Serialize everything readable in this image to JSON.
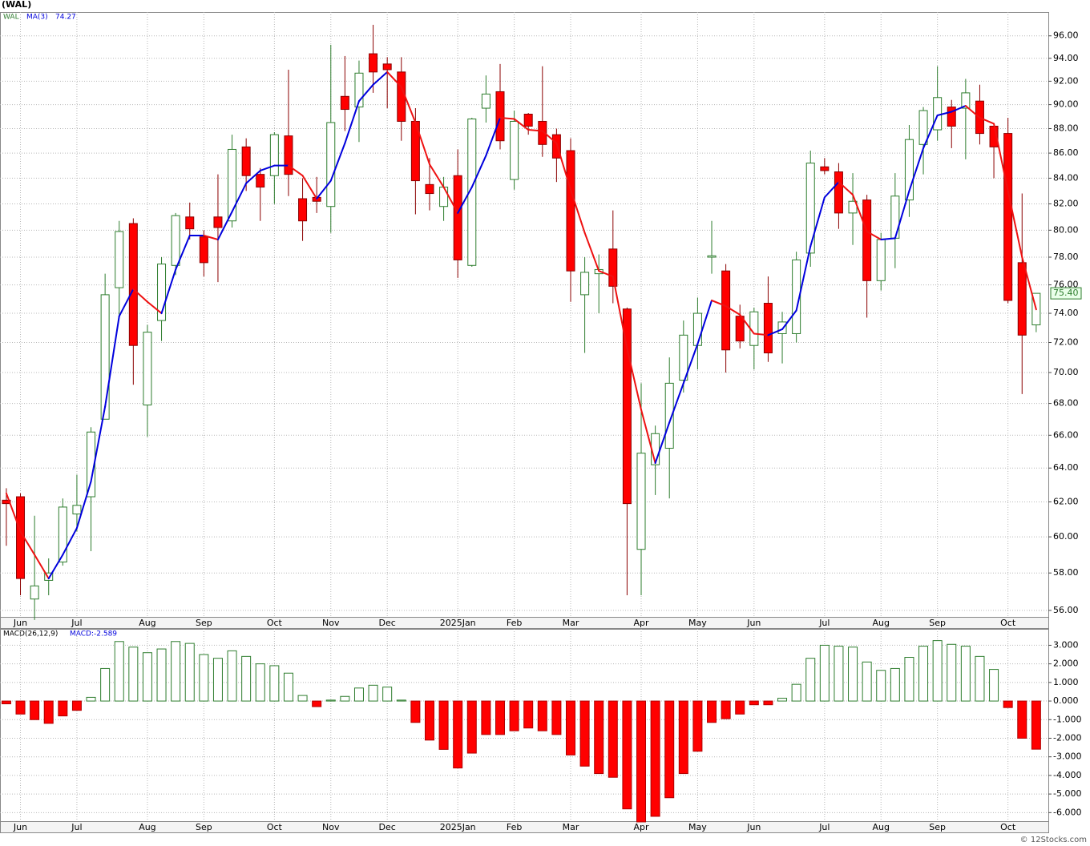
{
  "chart_data": [
    {
      "type": "candlestick",
      "title": "(WAL)",
      "symbol": "WAL",
      "log_scale": true,
      "grid": true,
      "ohlc": {
        "open": [
          62.1,
          62.3,
          56.6,
          57.6,
          58.6,
          61.3,
          62.3,
          67,
          75.8,
          80.5,
          67.9,
          73.5,
          77.4,
          81.0,
          79.5,
          81.0,
          80.7,
          86.5,
          84.3,
          84.2,
          87.4,
          82.4,
          82.5,
          81.8,
          90.7,
          89.8,
          94.4,
          93.5,
          92.8,
          88.6,
          83.5,
          81.8,
          84.2,
          77.4,
          89.7,
          91.1,
          83.9,
          89.2,
          88.6,
          87.5,
          86.2,
          75.3,
          76.8,
          78.6,
          74.3,
          59.3,
          64.2,
          65.2,
          69.5,
          71.8,
          78.0,
          77.0,
          73.8,
          71.8,
          74.7,
          72.6,
          72.6,
          78.3,
          84.9,
          84.5,
          81.3,
          82.3,
          76.3,
          79.4,
          82.3,
          86.7,
          87.9,
          89.8,
          89.7,
          90.3,
          88.2,
          87.6,
          77.6,
          73.2
        ],
        "high": [
          62.8,
          62.5,
          61.2,
          58.8,
          62.2,
          63.6,
          66.5,
          76.8,
          80.7,
          80.9,
          73.2,
          78.0,
          81.3,
          82.1,
          80.0,
          84.3,
          87.5,
          87.2,
          84.8,
          87.7,
          93.0,
          84.0,
          84.1,
          95.2,
          94.2,
          93.8,
          97.0,
          94.1,
          94.1,
          89.7,
          85.6,
          84.1,
          86.3,
          88.9,
          92.5,
          93.5,
          89.5,
          89.3,
          93.3,
          88.0,
          87.2,
          78.0,
          78.2,
          81.5,
          74.4,
          69.3,
          66.6,
          71.0,
          73.5,
          75.1,
          80.7,
          77.5,
          74.6,
          74.4,
          76.6,
          74.1,
          78.4,
          86.2,
          85.6,
          85.2,
          84.4,
          82.7,
          79.8,
          84.4,
          88.3,
          89.8,
          93.3,
          90.4,
          92.2,
          91.7,
          88.3,
          88.9,
          82.8,
          75.4
        ],
        "low": [
          59.5,
          56.8,
          55.5,
          56.8,
          58.4,
          60.3,
          59.2,
          67.0,
          73.7,
          69.2,
          65.9,
          72.1,
          76.7,
          79.3,
          76.6,
          76.2,
          80.2,
          83.0,
          80.7,
          82.0,
          82.6,
          79.2,
          81.3,
          79.8,
          87.8,
          86.9,
          91.0,
          89.7,
          87.0,
          81.2,
          81.5,
          80.7,
          76.5,
          77.3,
          88.5,
          86.3,
          83.1,
          87.5,
          85.7,
          83.7,
          74.8,
          71.3,
          74.0,
          74.7,
          56.8,
          56.8,
          62.4,
          62.2,
          68.7,
          70.2,
          76.8,
          70.0,
          71.6,
          70.2,
          70.7,
          70.6,
          72.0,
          77.3,
          84.3,
          80.1,
          78.9,
          73.7,
          75.6,
          77.2,
          81.0,
          84.3,
          87.0,
          86.4,
          85.5,
          86.7,
          84.0,
          74.7,
          68.6,
          72.7
        ],
        "close": [
          61.9,
          57.7,
          57.3,
          58.0,
          61.7,
          61.8,
          66.2,
          75.3,
          79.9,
          71.8,
          72.7,
          77.5,
          81.1,
          80.1,
          77.6,
          80.2,
          86.3,
          84.2,
          83.3,
          87.5,
          84.3,
          80.7,
          82.2,
          88.5,
          89.6,
          92.7,
          92.8,
          93.0,
          88.6,
          83.8,
          82.8,
          83.3,
          77.8,
          88.8,
          90.9,
          87.0,
          88.6,
          88.2,
          86.7,
          85.6,
          77.0,
          76.9,
          77.1,
          75.9,
          61.9,
          64.9,
          66.1,
          69.3,
          72.5,
          74.0,
          78.1,
          71.5,
          72.1,
          74.1,
          71.3,
          73.4,
          77.8,
          85.2,
          84.6,
          81.3,
          82.2,
          76.3,
          79.3,
          82.6,
          87.1,
          89.5,
          90.6,
          88.2,
          91.0,
          87.6,
          86.5,
          74.9,
          72.5,
          75.4
        ]
      },
      "up_color": "#2e7d2e",
      "down_color": "#ff0000",
      "ma": {
        "name": "MA(3)",
        "up_color": "#0000dd",
        "down_color": "#ee1111",
        "values": [
          62.5,
          60.3,
          59.0,
          57.7,
          59.0,
          60.5,
          63.2,
          67.8,
          73.8,
          75.7,
          74.8,
          74.0,
          77.1,
          79.6,
          79.6,
          79.3,
          81.4,
          83.6,
          84.6,
          85.0,
          85.0,
          84.2,
          82.4,
          83.8,
          86.8,
          90.3,
          91.7,
          92.8,
          91.5,
          88.5,
          85.1,
          83.3,
          81.3,
          83.3,
          85.8,
          88.9,
          88.8,
          87.9,
          87.8,
          86.8,
          83.1,
          79.8,
          77.0,
          76.6,
          71.6,
          67.6,
          64.3,
          66.8,
          69.3,
          71.9,
          74.9,
          74.5,
          73.9,
          72.6,
          72.5,
          72.9,
          74.2,
          78.8,
          82.5,
          83.7,
          82.7,
          79.9,
          79.3,
          79.4,
          83.0,
          86.4,
          89.1,
          89.4,
          89.9,
          88.9,
          88.4,
          83.0,
          78.0,
          74.27
        ]
      },
      "last_price_label": "75.40",
      "xlim": [
        -0.45,
        73.86
      ],
      "xticks": [
        {
          "value": 1,
          "label": "Jun"
        },
        {
          "value": 5,
          "label": "Jul"
        },
        {
          "value": 10,
          "label": "Aug"
        },
        {
          "value": 14,
          "label": "Sep"
        },
        {
          "value": 19,
          "label": "Oct"
        },
        {
          "value": 23,
          "label": "Nov"
        },
        {
          "value": 27,
          "label": "Dec"
        },
        {
          "value": 32,
          "label": "2025Jan"
        },
        {
          "value": 36,
          "label": "Feb"
        },
        {
          "value": 40,
          "label": "Mar"
        },
        {
          "value": 45,
          "label": "Apr"
        },
        {
          "value": 49,
          "label": "May"
        },
        {
          "value": 53,
          "label": "Jun"
        },
        {
          "value": 58,
          "label": "Jul"
        },
        {
          "value": 62,
          "label": "Aug"
        },
        {
          "value": 66,
          "label": "Sep"
        },
        {
          "value": 71,
          "label": "Oct"
        }
      ],
      "ylim": [
        55.66,
        98.17
      ],
      "yticks": [
        {
          "value": 56,
          "label": "56.00"
        },
        {
          "value": 58,
          "label": "58.00"
        },
        {
          "value": 60,
          "label": "60.00"
        },
        {
          "value": 62,
          "label": "62.00"
        },
        {
          "value": 64,
          "label": "64.00"
        },
        {
          "value": 66,
          "label": "66.00"
        },
        {
          "value": 68,
          "label": "68.00"
        },
        {
          "value": 70,
          "label": "70.00"
        },
        {
          "value": 72,
          "label": "72.00"
        },
        {
          "value": 74,
          "label": "74.00"
        },
        {
          "value": 76,
          "label": "76.00"
        },
        {
          "value": 78,
          "label": "78.00"
        },
        {
          "value": 80,
          "label": "80.00"
        },
        {
          "value": 82,
          "label": "82.00"
        },
        {
          "value": 84,
          "label": "84.00"
        },
        {
          "value": 86,
          "label": "86.00"
        },
        {
          "value": 88,
          "label": "88.00"
        },
        {
          "value": 90,
          "label": "90.00"
        },
        {
          "value": 92,
          "label": "92.00"
        },
        {
          "value": 94,
          "label": "94.00"
        },
        {
          "value": 96,
          "label": "96.00"
        }
      ]
    },
    {
      "type": "bar",
      "name": "MACD(26,12,9)",
      "value_label": "MACD:-2.589",
      "grid": true,
      "pos_color": "#2e7d2e",
      "neg_color": "#ff0000",
      "values": [
        -0.15,
        -0.7,
        -1.0,
        -1.2,
        -0.8,
        -0.5,
        0.2,
        1.75,
        3.2,
        2.9,
        2.6,
        2.8,
        3.2,
        3.1,
        2.5,
        2.3,
        2.7,
        2.4,
        2.0,
        1.9,
        1.5,
        0.3,
        -0.3,
        0.05,
        0.25,
        0.7,
        0.85,
        0.75,
        0.05,
        -1.15,
        -2.1,
        -2.6,
        -3.6,
        -2.8,
        -1.8,
        -1.8,
        -1.6,
        -1.45,
        -1.6,
        -1.8,
        -2.9,
        -3.5,
        -3.9,
        -4.1,
        -5.8,
        -6.5,
        -6.2,
        -5.2,
        -3.9,
        -2.7,
        -1.15,
        -0.95,
        -0.7,
        -0.2,
        -0.2,
        0.15,
        0.9,
        2.3,
        3.0,
        2.95,
        2.9,
        2.1,
        1.65,
        1.75,
        2.35,
        2.95,
        3.25,
        3.05,
        2.95,
        2.4,
        1.7,
        -0.35,
        -2.0,
        -2.589
      ],
      "xlim": [
        -0.45,
        73.86
      ],
      "xticks": [
        {
          "value": 1,
          "label": "Jun"
        },
        {
          "value": 5,
          "label": "Jul"
        },
        {
          "value": 10,
          "label": "Aug"
        },
        {
          "value": 14,
          "label": "Sep"
        },
        {
          "value": 19,
          "label": "Oct"
        },
        {
          "value": 23,
          "label": "Nov"
        },
        {
          "value": 27,
          "label": "Dec"
        },
        {
          "value": 32,
          "label": "2025Jan"
        },
        {
          "value": 36,
          "label": "Feb"
        },
        {
          "value": 40,
          "label": "Mar"
        },
        {
          "value": 45,
          "label": "Apr"
        },
        {
          "value": 49,
          "label": "May"
        },
        {
          "value": 53,
          "label": "Jun"
        },
        {
          "value": 58,
          "label": "Jul"
        },
        {
          "value": 62,
          "label": "Aug"
        },
        {
          "value": 66,
          "label": "Sep"
        },
        {
          "value": 71,
          "label": "Oct"
        }
      ],
      "ylim": [
        -6.46,
        3.88
      ],
      "yticks": [
        {
          "value": -6,
          "label": "-6.000"
        },
        {
          "value": -5,
          "label": "-5.000"
        },
        {
          "value": -4,
          "label": "-4.000"
        },
        {
          "value": -3,
          "label": "-3.000"
        },
        {
          "value": -2,
          "label": "-2.000"
        },
        {
          "value": -1,
          "label": "-1.000"
        },
        {
          "value": 0,
          "label": "0.000"
        },
        {
          "value": 1,
          "label": "1.000"
        },
        {
          "value": 2,
          "label": "2.000"
        },
        {
          "value": 3,
          "label": "3.000"
        }
      ]
    }
  ],
  "credit": "© 12Stocks.com"
}
